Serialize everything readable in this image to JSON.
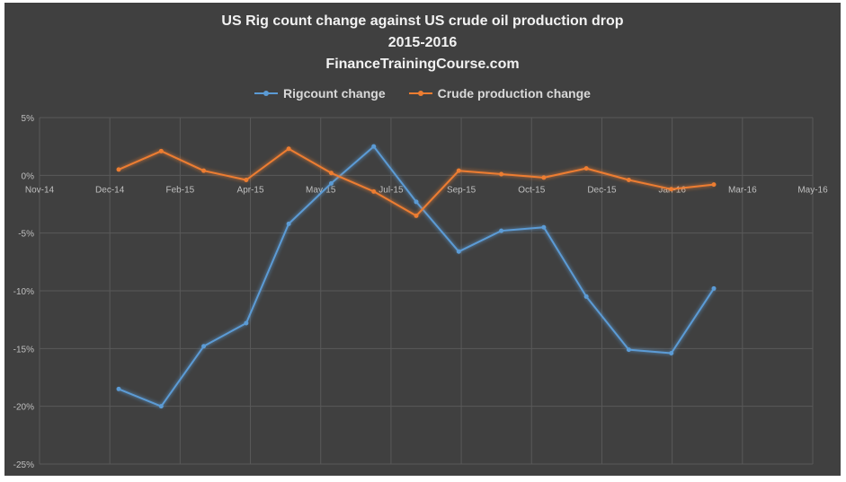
{
  "chart_data": {
    "type": "line",
    "title": [
      "US Rig count change against US crude oil production drop",
      "2015-2016",
      "FinanceTrainingCourse.com"
    ],
    "x_tick_labels": [
      "Nov-14",
      "Dec-14",
      "Feb-15",
      "Apr-15",
      "May-15",
      "Jul-15",
      "Sep-15",
      "Oct-15",
      "Dec-15",
      "Jan-16",
      "Mar-16",
      "May-16"
    ],
    "y_tick_labels": [
      "5%",
      "0%",
      "-5%",
      "-10%",
      "-15%",
      "-20%",
      "-25%"
    ],
    "ylim": [
      -25,
      5
    ],
    "y_ticks": [
      5,
      0,
      -5,
      -10,
      -15,
      -20,
      -25
    ],
    "grid": true,
    "legend_position": "top",
    "x_points": [
      "Dec-14",
      "Jan-15",
      "Feb-15",
      "Mar-15",
      "Apr-15",
      "May-15",
      "Jun-15",
      "Jul-15",
      "Aug-15",
      "Sep-15",
      "Oct-15",
      "Nov-15",
      "Dec-15",
      "Jan-16",
      "Feb-16"
    ],
    "series": [
      {
        "name": "Rigcount change",
        "color": "#5b9bd5",
        "values": [
          -18.5,
          -20.0,
          -14.8,
          -12.8,
          -4.2,
          -0.7,
          2.5,
          -2.3,
          -6.6,
          -4.8,
          -4.5,
          -10.5,
          -15.1,
          -15.4,
          -9.8
        ]
      },
      {
        "name": "Crude production change",
        "color": "#ed7d31",
        "values": [
          0.5,
          2.1,
          0.4,
          -0.4,
          2.3,
          0.2,
          -1.4,
          -3.5,
          0.4,
          0.1,
          -0.2,
          0.6,
          -0.4,
          -1.2,
          -0.8
        ]
      }
    ]
  },
  "colors": {
    "background": "#404040",
    "gridline": "#595959",
    "text": "#d9d9d9"
  }
}
